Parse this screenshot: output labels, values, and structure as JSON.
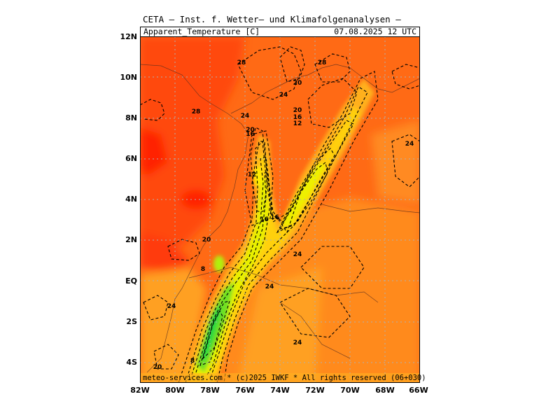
{
  "header": {
    "title": "CETA — Inst. f. Wetter— und Klimafolgenanalysen —",
    "variable": "Apparent_Temperature [C]",
    "valid_time": "07.08.2025 12 UTC"
  },
  "credit": "meteo-services.com * (c)2025 IWKF * All rights reserved (06+030)",
  "axes": {
    "lat_labels": [
      "12N",
      "10N",
      "8N",
      "6N",
      "4N",
      "2N",
      "EQ",
      "2S",
      "4S"
    ],
    "lon_labels": [
      "82W",
      "80W",
      "78W",
      "76W",
      "74W",
      "72W",
      "70W",
      "68W",
      "66W"
    ]
  },
  "map": {
    "lon_range": [
      -82,
      -66
    ],
    "lat_range": [
      -5,
      12
    ],
    "colors": {
      "hot_red": "#ff2200",
      "red_orange": "#ff4a10",
      "orange": "#ff7a1a",
      "light_orange": "#ffa020",
      "yellow_orange": "#ffc01a",
      "yellow": "#ffe010",
      "yellow_green": "#c8f000",
      "green": "#40e020",
      "bright_green": "#00d840"
    },
    "contour_labels": [
      {
        "text": "28",
        "lon": -76.2,
        "lat": 10.7
      },
      {
        "text": "28",
        "lon": -71.6,
        "lat": 10.7
      },
      {
        "text": "28",
        "lon": -78.8,
        "lat": 8.3
      },
      {
        "text": "24",
        "lon": -73.8,
        "lat": 9.1
      },
      {
        "text": "20",
        "lon": -73.0,
        "lat": 9.7
      },
      {
        "text": "24",
        "lon": -76.0,
        "lat": 8.1
      },
      {
        "text": "20",
        "lon": -73.0,
        "lat": 8.35
      },
      {
        "text": "16",
        "lon": -73.0,
        "lat": 8.0
      },
      {
        "text": "12",
        "lon": -73.0,
        "lat": 7.7
      },
      {
        "text": "20",
        "lon": -75.7,
        "lat": 7.4
      },
      {
        "text": "16",
        "lon": -75.7,
        "lat": 7.2
      },
      {
        "text": "12",
        "lon": -75.6,
        "lat": 5.2
      },
      {
        "text": "24",
        "lon": -66.6,
        "lat": 6.7
      },
      {
        "text": "16",
        "lon": -74.9,
        "lat": 3.0
      },
      {
        "text": "16",
        "lon": -74.3,
        "lat": 3.1
      },
      {
        "text": "20",
        "lon": -78.2,
        "lat": 2.0
      },
      {
        "text": "24",
        "lon": -73.0,
        "lat": 1.3
      },
      {
        "text": "8",
        "lon": -78.4,
        "lat": 0.55
      },
      {
        "text": "24",
        "lon": -74.6,
        "lat": -0.3
      },
      {
        "text": "24",
        "lon": -80.2,
        "lat": -1.25
      },
      {
        "text": "24",
        "lon": -73.0,
        "lat": -3.05
      },
      {
        "text": "8",
        "lon": -79.0,
        "lat": -3.95
      },
      {
        "text": "20",
        "lon": -81.0,
        "lat": -4.25
      }
    ]
  }
}
